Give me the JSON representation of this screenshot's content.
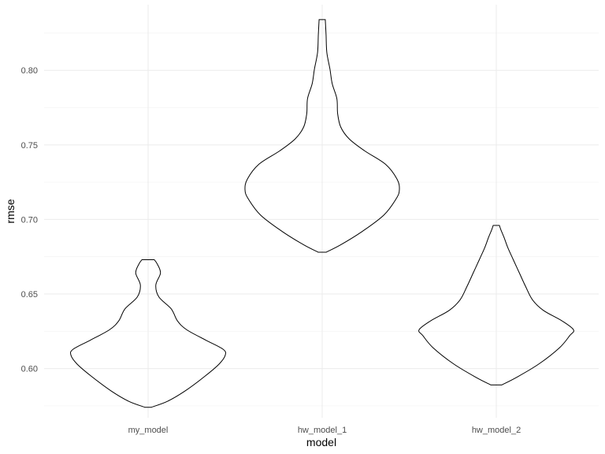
{
  "chart_data": {
    "type": "violin",
    "title": "",
    "xlabel": "model",
    "ylabel": "rmse",
    "categories": [
      "my_model",
      "hw_model_1",
      "hw_model_2"
    ],
    "ylim": [
      0.567,
      0.844
    ],
    "yticks": [
      0.6,
      0.65,
      0.7,
      0.75,
      0.8
    ],
    "ytick_labels": [
      "0.60",
      "0.65",
      "0.70",
      "0.75",
      "0.80"
    ],
    "grid": true,
    "legend": "none",
    "series": [
      {
        "category": "my_model",
        "min": 0.574,
        "max": 0.673,
        "density_profile": [
          {
            "y": 0.574,
            "w": 0.04
          },
          {
            "y": 0.578,
            "w": 0.25
          },
          {
            "y": 0.585,
            "w": 0.48
          },
          {
            "y": 0.595,
            "w": 0.74
          },
          {
            "y": 0.603,
            "w": 0.92
          },
          {
            "y": 0.609,
            "w": 1.0
          },
          {
            "y": 0.613,
            "w": 0.97
          },
          {
            "y": 0.619,
            "w": 0.75
          },
          {
            "y": 0.626,
            "w": 0.5
          },
          {
            "y": 0.632,
            "w": 0.38
          },
          {
            "y": 0.64,
            "w": 0.3
          },
          {
            "y": 0.648,
            "w": 0.14
          },
          {
            "y": 0.656,
            "w": 0.1
          },
          {
            "y": 0.664,
            "w": 0.16
          },
          {
            "y": 0.67,
            "w": 0.12
          },
          {
            "y": 0.673,
            "w": 0.08
          }
        ]
      },
      {
        "category": "hw_model_1",
        "min": 0.678,
        "max": 0.834,
        "density_profile": [
          {
            "y": 0.678,
            "w": 0.05
          },
          {
            "y": 0.683,
            "w": 0.24
          },
          {
            "y": 0.692,
            "w": 0.52
          },
          {
            "y": 0.703,
            "w": 0.8
          },
          {
            "y": 0.714,
            "w": 0.96
          },
          {
            "y": 0.72,
            "w": 1.0
          },
          {
            "y": 0.727,
            "w": 0.97
          },
          {
            "y": 0.737,
            "w": 0.82
          },
          {
            "y": 0.746,
            "w": 0.55
          },
          {
            "y": 0.754,
            "w": 0.35
          },
          {
            "y": 0.762,
            "w": 0.24
          },
          {
            "y": 0.771,
            "w": 0.2
          },
          {
            "y": 0.781,
            "w": 0.19
          },
          {
            "y": 0.791,
            "w": 0.13
          },
          {
            "y": 0.801,
            "w": 0.1
          },
          {
            "y": 0.812,
            "w": 0.06
          },
          {
            "y": 0.824,
            "w": 0.05
          },
          {
            "y": 0.834,
            "w": 0.04
          }
        ]
      },
      {
        "category": "hw_model_2",
        "min": 0.589,
        "max": 0.696,
        "density_profile": [
          {
            "y": 0.589,
            "w": 0.07
          },
          {
            "y": 0.594,
            "w": 0.26
          },
          {
            "y": 0.603,
            "w": 0.55
          },
          {
            "y": 0.614,
            "w": 0.82
          },
          {
            "y": 0.622,
            "w": 0.95
          },
          {
            "y": 0.626,
            "w": 1.0
          },
          {
            "y": 0.632,
            "w": 0.85
          },
          {
            "y": 0.639,
            "w": 0.61
          },
          {
            "y": 0.646,
            "w": 0.47
          },
          {
            "y": 0.655,
            "w": 0.38
          },
          {
            "y": 0.664,
            "w": 0.3
          },
          {
            "y": 0.673,
            "w": 0.22
          },
          {
            "y": 0.681,
            "w": 0.15
          },
          {
            "y": 0.688,
            "w": 0.1
          },
          {
            "y": 0.693,
            "w": 0.06
          },
          {
            "y": 0.696,
            "w": 0.04
          }
        ]
      }
    ]
  }
}
